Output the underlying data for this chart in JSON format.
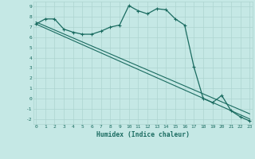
{
  "xlabel": "Humidex (Indice chaleur)",
  "bg_color": "#c5e8e5",
  "grid_color": "#aed4d0",
  "line_color": "#1a6b60",
  "x_data": [
    0,
    1,
    2,
    3,
    4,
    5,
    6,
    7,
    8,
    9,
    10,
    11,
    12,
    13,
    14,
    15,
    16,
    17,
    18,
    19,
    20,
    21,
    22,
    23
  ],
  "line1": [
    7.3,
    7.8,
    7.8,
    6.8,
    6.5,
    6.3,
    6.3,
    6.6,
    7.0,
    7.2,
    9.1,
    8.6,
    8.3,
    8.8,
    8.7,
    7.8,
    7.2,
    3.1,
    0.0,
    -0.4,
    0.3,
    -1.2,
    -1.8,
    -2.2
  ],
  "line2_x": [
    0,
    23
  ],
  "line2_y": [
    7.3,
    -2.0
  ],
  "line3_x": [
    0,
    23
  ],
  "line3_y": [
    7.5,
    -1.5
  ],
  "ylim": [
    -2.5,
    9.5
  ],
  "xlim": [
    -0.3,
    23.3
  ],
  "yticks": [
    -2,
    -1,
    0,
    1,
    2,
    3,
    4,
    5,
    6,
    7,
    8,
    9
  ],
  "xticks": [
    0,
    1,
    2,
    3,
    4,
    5,
    6,
    7,
    8,
    9,
    10,
    11,
    12,
    13,
    14,
    15,
    16,
    17,
    18,
    19,
    20,
    21,
    22,
    23
  ]
}
